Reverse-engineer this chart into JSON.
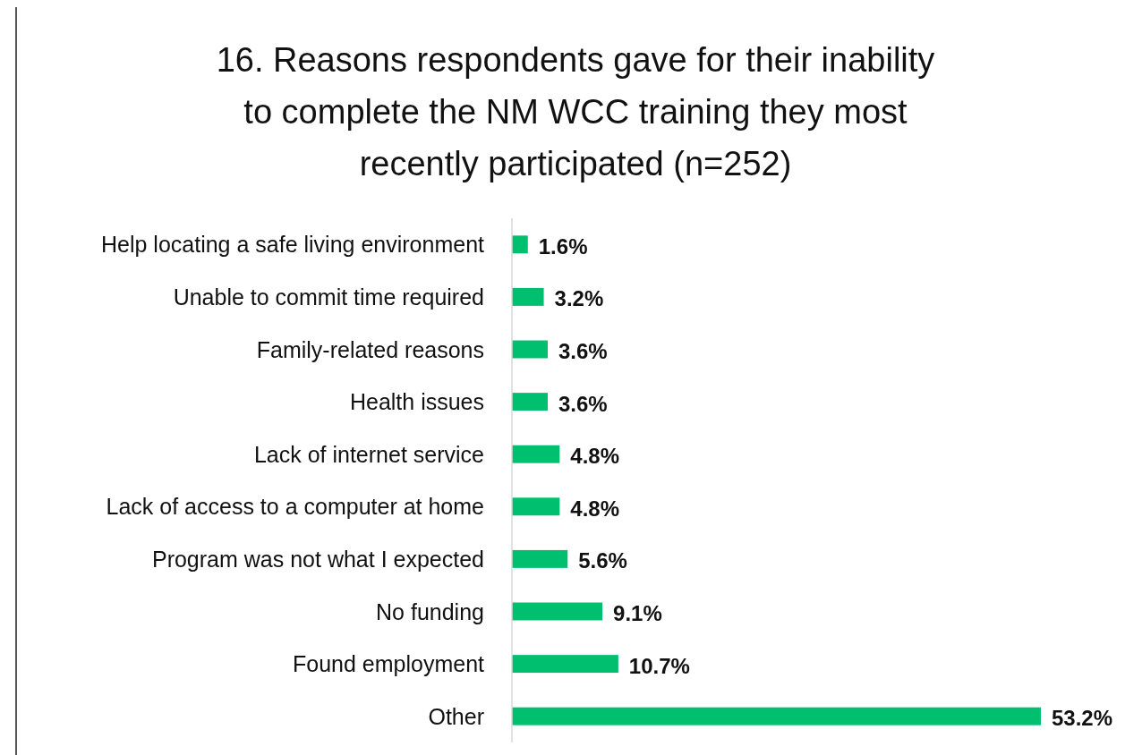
{
  "chart_data": {
    "type": "bar",
    "orientation": "horizontal",
    "title": "16. Reasons respondents gave for their inability to complete the NM WCC training they most recently participated (n=252)",
    "categories": [
      "Help locating a safe living environment",
      "Unable to commit time required",
      "Family-related reasons",
      "Health issues",
      "Lack of internet service",
      "Lack of access to a computer at home",
      "Program was not what I expected",
      "No funding",
      "Found employment",
      "Other"
    ],
    "values": [
      1.6,
      3.2,
      3.6,
      3.6,
      4.8,
      4.8,
      5.6,
      9.1,
      10.7,
      53.2
    ],
    "value_labels": [
      "1.6%",
      "3.2%",
      "3.6%",
      "3.6%",
      "4.8%",
      "4.8%",
      "5.6%",
      "9.1%",
      "10.7%",
      "53.2%"
    ],
    "color": "#00bf6f"
  }
}
